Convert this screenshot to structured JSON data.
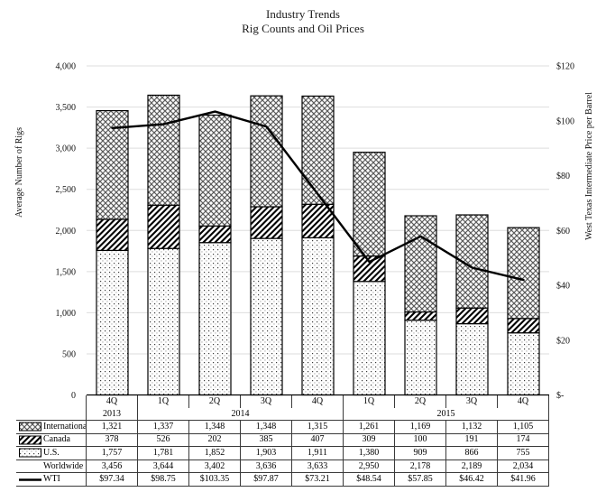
{
  "title": {
    "line1": "Industry Trends",
    "line2": "Rig Counts and Oil Prices"
  },
  "chart_data": {
    "type": "bar",
    "subtype": "stacked-bars-with-line-overlay",
    "categories": [
      "4Q",
      "1Q",
      "2Q",
      "3Q",
      "4Q",
      "1Q",
      "2Q",
      "3Q",
      "4Q"
    ],
    "year_groups": [
      {
        "label": "2013",
        "span": 1
      },
      {
        "label": "2014",
        "span": 4
      },
      {
        "label": "2015",
        "span": 4
      }
    ],
    "bar_series": [
      {
        "name": "U.S.",
        "pattern": "dots",
        "values": [
          1757,
          1781,
          1852,
          1903,
          1911,
          1380,
          909,
          866,
          755
        ]
      },
      {
        "name": "Canada",
        "pattern": "diagonal",
        "values": [
          378,
          526,
          202,
          385,
          407,
          309,
          100,
          191,
          174
        ]
      },
      {
        "name": "International",
        "pattern": "crosshatch",
        "values": [
          1321,
          1337,
          1348,
          1348,
          1315,
          1261,
          1169,
          1132,
          1105
        ]
      }
    ],
    "line_series": {
      "name": "WTI",
      "axis": "right",
      "values": [
        97.34,
        98.75,
        103.35,
        97.87,
        73.21,
        48.54,
        57.85,
        46.42,
        41.96
      ]
    },
    "left_axis": {
      "label": "Average Number of Rigs",
      "min": 0,
      "max": 4000,
      "step": 500,
      "tick_labels": [
        "0",
        "500",
        "1,000",
        "1,500",
        "2,000",
        "2,500",
        "3,000",
        "3,500",
        "4,000"
      ]
    },
    "right_axis": {
      "label": "West Texas Intermediate Price per Barrel",
      "min": 0,
      "max": 120,
      "step": 20,
      "tick_labels": [
        "$-",
        "$20",
        "$40",
        "$60",
        "$80",
        "$100",
        "$120"
      ]
    },
    "grid": true,
    "legend_position": "table-rows"
  },
  "table": {
    "rows": [
      {
        "label": "International",
        "swatch": "crosshatch",
        "values": [
          "1,321",
          "1,337",
          "1,348",
          "1,348",
          "1,315",
          "1,261",
          "1,169",
          "1,132",
          "1,105"
        ]
      },
      {
        "label": "Canada",
        "swatch": "diagonal",
        "values": [
          "378",
          "526",
          "202",
          "385",
          "407",
          "309",
          "100",
          "191",
          "174"
        ]
      },
      {
        "label": "U.S.",
        "swatch": "dots",
        "values": [
          "1,757",
          "1,781",
          "1,852",
          "1,903",
          "1,911",
          "1,380",
          "909",
          "866",
          "755"
        ]
      },
      {
        "label": "Worldwide",
        "swatch": "none",
        "values": [
          "3,456",
          "3,644",
          "3,402",
          "3,636",
          "3,633",
          "2,950",
          "2,178",
          "2,189",
          "2,034"
        ]
      },
      {
        "label": "WTI",
        "swatch": "line",
        "values": [
          "$97.34",
          "$98.75",
          "$103.35",
          "$97.87",
          "$73.21",
          "$48.54",
          "$57.85",
          "$46.42",
          "$41.96"
        ]
      }
    ]
  },
  "style": {
    "grid_color": "#dedede",
    "ink_color": "#000000",
    "crosshatch_color": "#5a5a5a",
    "dot_dark": "#3a3a3a",
    "dot_light": "#9a9a9a",
    "border_color": "#3a3a3a"
  }
}
